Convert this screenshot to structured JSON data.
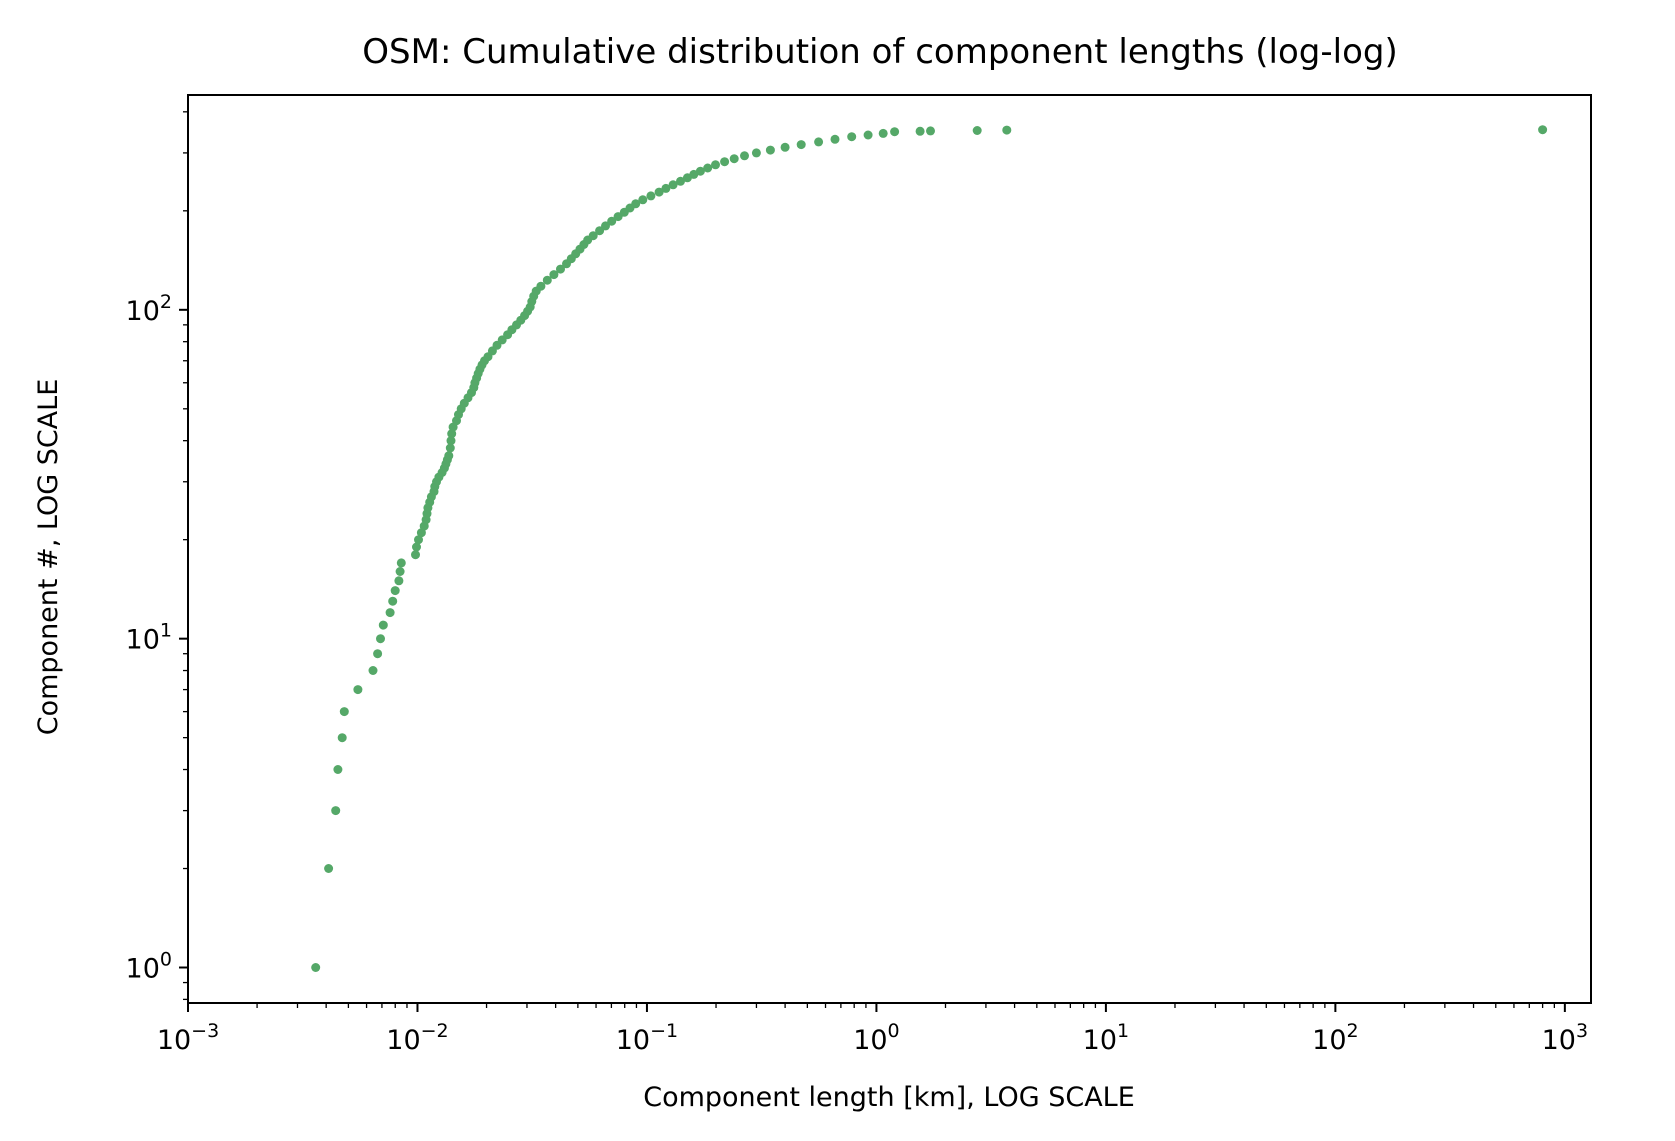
{
  "chart_data": {
    "type": "scatter",
    "title": "OSM: Cumulative distribution of component lengths (log-log)",
    "xlabel": "Component length [km], LOG SCALE",
    "ylabel": "Component #, LOG SCALE",
    "xscale": "log",
    "yscale": "log",
    "xlim": [
      0.001,
      1300
    ],
    "ylim": [
      0.78,
      450
    ],
    "grid": false,
    "legend": "none",
    "color": "#55a868",
    "x_ticks": [
      {
        "base": "10",
        "exp": "−3"
      },
      {
        "base": "10",
        "exp": "−2"
      },
      {
        "base": "10",
        "exp": "−1"
      },
      {
        "base": "10",
        "exp": "0"
      },
      {
        "base": "10",
        "exp": "1"
      },
      {
        "base": "10",
        "exp": "2"
      },
      {
        "base": "10",
        "exp": "3"
      }
    ],
    "y_ticks": [
      {
        "base": "10",
        "exp": "0"
      },
      {
        "base": "10",
        "exp": "1"
      },
      {
        "base": "10",
        "exp": "2"
      }
    ],
    "series": [
      {
        "points": [
          [
            0.0036,
            1
          ],
          [
            0.0041,
            2
          ],
          [
            0.0044,
            3
          ],
          [
            0.0045,
            4
          ],
          [
            0.0047,
            5
          ],
          [
            0.0048,
            6
          ],
          [
            0.0055,
            7
          ],
          [
            0.0064,
            8
          ],
          [
            0.0067,
            9
          ],
          [
            0.0069,
            10
          ],
          [
            0.0071,
            11
          ],
          [
            0.0076,
            12
          ],
          [
            0.0078,
            13
          ],
          [
            0.008,
            14
          ],
          [
            0.0083,
            15
          ],
          [
            0.0084,
            16
          ],
          [
            0.0085,
            17
          ],
          [
            0.0098,
            18
          ],
          [
            0.0099,
            19
          ],
          [
            0.0101,
            20
          ],
          [
            0.0104,
            21
          ],
          [
            0.0107,
            22
          ],
          [
            0.0109,
            23
          ],
          [
            0.011,
            24
          ],
          [
            0.0111,
            25
          ],
          [
            0.0113,
            26
          ],
          [
            0.0115,
            27
          ],
          [
            0.0118,
            28
          ],
          [
            0.0119,
            29
          ],
          [
            0.0121,
            30
          ],
          [
            0.0124,
            31
          ],
          [
            0.0128,
            32
          ],
          [
            0.0131,
            33
          ],
          [
            0.0133,
            34
          ],
          [
            0.0135,
            35
          ],
          [
            0.0137,
            36
          ],
          [
            0.0139,
            38
          ],
          [
            0.014,
            40
          ],
          [
            0.0141,
            42
          ],
          [
            0.0143,
            44
          ],
          [
            0.0148,
            46
          ],
          [
            0.0151,
            48
          ],
          [
            0.0155,
            50
          ],
          [
            0.016,
            52
          ],
          [
            0.0166,
            54
          ],
          [
            0.0172,
            56
          ],
          [
            0.0176,
            58
          ],
          [
            0.0178,
            60
          ],
          [
            0.0181,
            62
          ],
          [
            0.0184,
            64
          ],
          [
            0.0187,
            66
          ],
          [
            0.0191,
            68
          ],
          [
            0.0196,
            70
          ],
          [
            0.0203,
            72
          ],
          [
            0.0212,
            75
          ],
          [
            0.0222,
            78
          ],
          [
            0.0234,
            81
          ],
          [
            0.0247,
            84
          ],
          [
            0.0258,
            87
          ],
          [
            0.027,
            90
          ],
          [
            0.0282,
            93
          ],
          [
            0.0293,
            96
          ],
          [
            0.0302,
            99
          ],
          [
            0.031,
            102
          ],
          [
            0.0315,
            106
          ],
          [
            0.0321,
            110
          ],
          [
            0.0329,
            114
          ],
          [
            0.0345,
            118
          ],
          [
            0.0368,
            123
          ],
          [
            0.0393,
            128
          ],
          [
            0.042,
            133
          ],
          [
            0.0446,
            138
          ],
          [
            0.0468,
            143
          ],
          [
            0.0489,
            148
          ],
          [
            0.0511,
            153
          ],
          [
            0.0531,
            158
          ],
          [
            0.0552,
            163
          ],
          [
            0.0583,
            168
          ],
          [
            0.0622,
            174
          ],
          [
            0.066,
            180
          ],
          [
            0.0702,
            186
          ],
          [
            0.0749,
            192
          ],
          [
            0.0797,
            198
          ],
          [
            0.0844,
            204
          ],
          [
            0.0893,
            210
          ],
          [
            0.0959,
            216
          ],
          [
            0.104,
            222
          ],
          [
            0.113,
            228
          ],
          [
            0.121,
            234
          ],
          [
            0.13,
            240
          ],
          [
            0.14,
            246
          ],
          [
            0.15,
            252
          ],
          [
            0.16,
            258
          ],
          [
            0.171,
            264
          ],
          [
            0.184,
            270
          ],
          [
            0.199,
            276
          ],
          [
            0.218,
            282
          ],
          [
            0.24,
            288
          ],
          [
            0.266,
            294
          ],
          [
            0.3,
            300
          ],
          [
            0.345,
            306
          ],
          [
            0.4,
            312
          ],
          [
            0.47,
            318
          ],
          [
            0.56,
            324
          ],
          [
            0.66,
            330
          ],
          [
            0.78,
            336
          ],
          [
            0.92,
            340
          ],
          [
            1.07,
            344
          ],
          [
            1.2,
            348
          ],
          [
            1.55,
            349
          ],
          [
            1.72,
            350
          ],
          [
            2.75,
            351
          ],
          [
            3.7,
            352
          ],
          [
            800,
            353
          ]
        ]
      }
    ]
  }
}
